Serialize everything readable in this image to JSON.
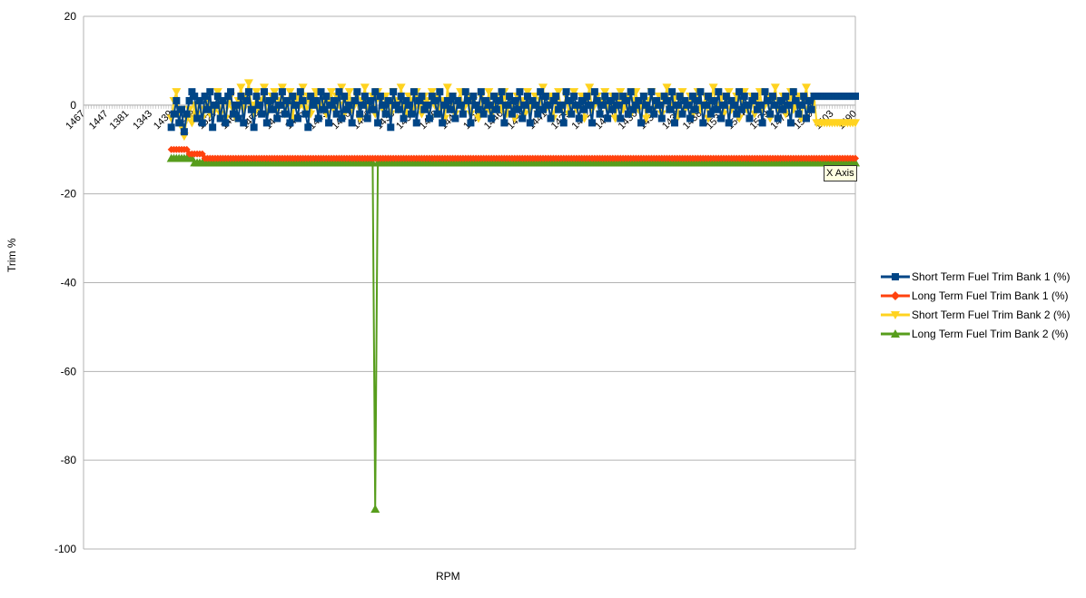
{
  "chart_data": {
    "type": "line",
    "title": "",
    "xlabel": "RPM",
    "ylabel": "Trim %",
    "ylim": [
      -100,
      20
    ],
    "y_ticks": [
      20,
      0,
      -20,
      -40,
      -60,
      -80,
      -100
    ],
    "grid": "horizontal",
    "legend_position": "right",
    "x_tick_labels": [
      "1467",
      "1447",
      "1381",
      "1343",
      "1439",
      "1528",
      "1529",
      "1467",
      "1454",
      "1445",
      "1455",
      "1443",
      "1440",
      "1446",
      "1438",
      "1458",
      "1449",
      "1447",
      "1425",
      "1446",
      "1458",
      "1441",
      "1429",
      "1442",
      "1430",
      "1436",
      "1431",
      "1439",
      "1438",
      "1534",
      "1544",
      "1529",
      "1478",
      "1509",
      "1503",
      "1490"
    ],
    "series": [
      {
        "name": "Short Term Fuel Trim Bank 1 (%)",
        "color": "#004586",
        "marker": "square",
        "start_index": 34,
        "values": [
          -5,
          -2,
          1,
          -4,
          -1,
          -6,
          -2,
          1,
          3,
          2,
          -3,
          1,
          -4,
          2,
          -1,
          3,
          -5,
          0,
          2,
          -3,
          1,
          -4,
          2,
          3,
          -2,
          0,
          -3,
          2,
          -4,
          1,
          3,
          -1,
          -5,
          2,
          0,
          -2,
          3,
          -4,
          1,
          -1,
          2,
          -3,
          0,
          3,
          -2,
          1,
          -4,
          2,
          0,
          -3,
          3,
          1,
          -2,
          -5,
          2,
          0,
          1,
          -3,
          3,
          -1,
          2,
          -4,
          0,
          1,
          -2,
          3,
          -3,
          2,
          -1,
          0,
          -4,
          1,
          3,
          -2,
          0,
          2,
          -3,
          1,
          -1,
          3,
          -4,
          2,
          0,
          -2,
          1,
          -5,
          3,
          0,
          -1,
          2,
          -3,
          1,
          0,
          -2,
          3,
          -4,
          1,
          2,
          -1,
          0,
          -3,
          2,
          1,
          -2,
          3,
          -4,
          0,
          1,
          -1,
          2,
          -3,
          1,
          0,
          -2,
          3,
          1,
          -4,
          2,
          0,
          -1,
          3,
          -2,
          1,
          0,
          -3,
          2,
          -1,
          1,
          3,
          -4,
          0,
          2,
          -2,
          1,
          -1,
          3,
          -3,
          0,
          2,
          -4,
          1,
          0,
          -2,
          3,
          -1,
          2,
          0,
          -3,
          1,
          2,
          -1,
          0,
          -4,
          3,
          1,
          -2,
          2,
          0,
          -3,
          1,
          -1,
          2,
          0,
          -4,
          3,
          1,
          -2,
          0,
          2,
          -3,
          1,
          -1,
          2,
          0,
          -3,
          2,
          1,
          -2,
          3,
          -1,
          0,
          1,
          -4,
          2,
          0,
          -1,
          3,
          -2,
          1,
          0,
          -3,
          2,
          1,
          -1,
          3,
          -4,
          0,
          2,
          -2,
          1,
          0,
          -3,
          2,
          -1,
          1,
          3,
          -4,
          0,
          2,
          -2,
          1,
          -1,
          3,
          -3,
          0,
          2,
          -4,
          1,
          0,
          -2,
          3,
          -1,
          2,
          0,
          -3,
          1,
          2,
          -1,
          0,
          -4,
          3,
          1,
          -2,
          2,
          0,
          -3,
          1,
          -1,
          2,
          0,
          -4,
          3,
          1,
          -2,
          0,
          2,
          -3,
          1,
          -1,
          2
        ]
      },
      {
        "name": "Long Term Fuel Trim Bank 1 (%)",
        "color": "#ff420e",
        "marker": "diamond",
        "start_index": 34,
        "values": [
          -10,
          -10,
          -10,
          -10,
          -10,
          -10,
          -10,
          -11,
          -11,
          -11,
          -11,
          -11,
          -11,
          -12,
          -12,
          -12,
          -12,
          -12,
          -12,
          -12,
          -12,
          -12,
          -12,
          -12,
          -12,
          -12,
          -12,
          -12,
          -12,
          -12,
          -12,
          -12,
          -12,
          -12,
          -12,
          -12,
          -12,
          -12,
          -12,
          -12,
          -12,
          -12,
          -12,
          -12,
          -12,
          -12,
          -12,
          -12,
          -12,
          -12,
          -12,
          -12,
          -12,
          -12,
          -12,
          -12,
          -12,
          -12,
          -12,
          -12,
          -12,
          -12,
          -12,
          -12,
          -12,
          -12,
          -12,
          -12,
          -12,
          -12,
          -12,
          -12,
          -12,
          -12,
          -12,
          -12,
          -12,
          -12,
          -12,
          -12,
          -12,
          -12,
          -12,
          -12,
          -12,
          -12,
          -12,
          -12,
          -12,
          -12,
          -12,
          -12,
          -12,
          -12,
          -12,
          -12,
          -12,
          -12,
          -12,
          -12,
          -12,
          -12,
          -12,
          -12,
          -12,
          -12,
          -12,
          -12,
          -12,
          -12,
          -12,
          -12,
          -12,
          -12,
          -12,
          -12,
          -12,
          -12,
          -12,
          -12,
          -12,
          -12,
          -12,
          -12,
          -12,
          -12,
          -12,
          -12,
          -12,
          -12,
          -12,
          -12,
          -12,
          -12,
          -12,
          -12,
          -12,
          -12,
          -12,
          -12,
          -12,
          -12,
          -12,
          -12,
          -12,
          -12,
          -12,
          -12,
          -12,
          -12,
          -12,
          -12,
          -12,
          -12,
          -12,
          -12,
          -12,
          -12,
          -12,
          -12,
          -12,
          -12,
          -12,
          -12,
          -12,
          -12,
          -12,
          -12,
          -12,
          -12,
          -12,
          -12,
          -12,
          -12,
          -12,
          -12,
          -12,
          -12,
          -12,
          -12,
          -12,
          -12,
          -12,
          -12,
          -12,
          -12,
          -12,
          -12,
          -12,
          -12,
          -12,
          -12,
          -12,
          -12,
          -12,
          -12,
          -12,
          -12,
          -12,
          -12,
          -12,
          -12,
          -12,
          -12,
          -12,
          -12,
          -12,
          -12,
          -12,
          -12,
          -12,
          -12,
          -12,
          -12,
          -12,
          -12,
          -12,
          -12,
          -12,
          -12,
          -12,
          -12,
          -12,
          -12,
          -12,
          -12,
          -12,
          -12,
          -12,
          -12,
          -12,
          -12,
          -12,
          -12,
          -12,
          -12,
          -12,
          -12,
          -12,
          -12,
          -12,
          -12,
          -12,
          -12,
          -12,
          -12,
          -12,
          -12,
          -12,
          -12,
          -12,
          -12,
          -12,
          -12,
          -12,
          -12,
          -12,
          -12,
          -12,
          -12,
          -12,
          -12,
          -12,
          -12,
          -12,
          -12,
          -12,
          -12,
          -12
        ]
      },
      {
        "name": "Short Term Fuel Trim Bank 2 (%)",
        "color": "#ffd320",
        "marker": "triangle-down",
        "start_index": 34,
        "values": [
          -3,
          1,
          3,
          -2,
          -5,
          -7,
          -3,
          -1,
          -4,
          0,
          -2,
          1,
          -3,
          -1,
          2,
          -2,
          0,
          -1,
          3,
          -2,
          1,
          -3,
          0,
          2,
          -1,
          -3,
          1,
          4,
          -1,
          2,
          5,
          0,
          -2,
          3,
          -1,
          1,
          4,
          -2,
          0,
          2,
          3,
          -1,
          1,
          4,
          -2,
          0,
          3,
          -3,
          1,
          2,
          0,
          4,
          -1,
          2,
          -2,
          1,
          3,
          -1,
          0,
          2,
          -2,
          1,
          3,
          -1,
          2,
          0,
          4,
          -2,
          1,
          3,
          -1,
          0,
          2,
          -3,
          1,
          4,
          -1,
          0,
          2,
          -2,
          3,
          1,
          -1,
          2,
          0,
          -2,
          3,
          1,
          -1,
          4,
          0,
          -2,
          2,
          1,
          -1,
          3,
          0,
          -2,
          2,
          1,
          -3,
          3,
          0,
          2,
          -1,
          1,
          -3,
          4,
          0,
          2,
          -2,
          1,
          3,
          -1,
          0,
          2,
          -2,
          1,
          0,
          -3,
          2,
          1,
          -1,
          3,
          -2,
          0,
          2,
          1,
          -1,
          3,
          -2,
          0,
          1,
          -3,
          2,
          0,
          1,
          -2,
          3,
          -1,
          0,
          2,
          -2,
          1,
          4,
          -1,
          0,
          2,
          -3,
          1,
          3,
          -1,
          0,
          2,
          -2,
          1,
          3,
          -1,
          0,
          2,
          -3,
          1,
          4,
          -1,
          0,
          2,
          -2,
          1,
          3,
          -1,
          0,
          2,
          -3,
          1,
          3,
          -1,
          0,
          2,
          -2,
          1,
          3,
          -1,
          0,
          2,
          -3,
          1,
          3,
          -1,
          0,
          2,
          -2,
          1,
          4,
          -1,
          0,
          2,
          -3,
          1,
          3,
          -1,
          0,
          2,
          -2,
          1,
          3,
          -1,
          0,
          2,
          -3,
          1,
          4,
          -1,
          0,
          2,
          -2,
          1,
          3,
          -1,
          0,
          2,
          -3,
          1,
          3,
          -1,
          0,
          2,
          -2,
          1,
          3,
          -1,
          0,
          2,
          -3,
          1,
          4,
          -1,
          0,
          2,
          -2,
          1,
          3,
          -1,
          0,
          2,
          -3,
          1,
          4,
          -1,
          0,
          2,
          -4
        ]
      },
      {
        "name": "Long Term Fuel Trim Bank 2 (%)",
        "color": "#579d1c",
        "marker": "triangle-up",
        "start_index": 34,
        "dip": {
          "index": 113,
          "value": -91
        },
        "values": [
          -12,
          -12,
          -12,
          -12,
          -12,
          -12,
          -12,
          -12,
          -12,
          -13,
          -13,
          -13,
          -13,
          -13
        ]
      }
    ],
    "n_points": 300
  },
  "tooltip_text": "X Axis",
  "legend": {
    "items": [
      "Short Term Fuel Trim Bank 1 (%)",
      "Long Term Fuel Trim Bank 1 (%)",
      "Short Term Fuel Trim Bank 2 (%)",
      "Long Term Fuel Trim Bank 2 (%)"
    ]
  }
}
